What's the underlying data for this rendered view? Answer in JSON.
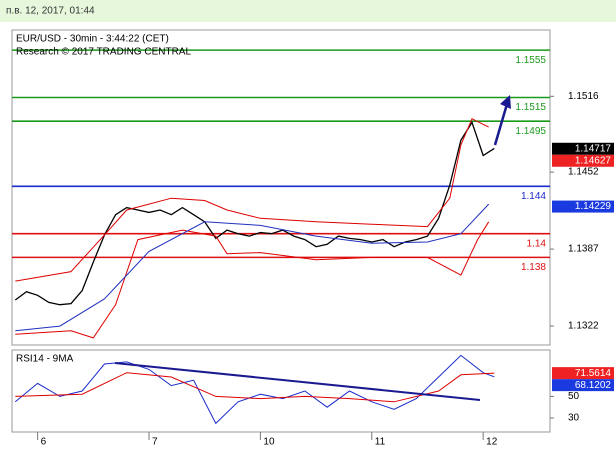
{
  "header": {
    "timestamp": "п.в. 12, 2017, 01:44"
  },
  "chart_data": [
    {
      "type": "line",
      "title": "EUR/USD - 30min - 3:44:22 (CET)",
      "subtitle": "Research © 2017 TRADING CENTRAL",
      "xlim": [
        -0.23,
        4.6
      ],
      "ylim": [
        1.1306,
        1.1572
      ],
      "yticks": [
        1.1322,
        1.1387,
        1.1452,
        1.1516
      ],
      "series": [
        {
          "color": "#000000",
          "x": [
            -0.2,
            -0.1,
            0,
            0.1,
            0.2,
            0.3,
            0.4,
            0.5,
            0.6,
            0.7,
            0.8,
            0.9,
            1,
            1.1,
            1.2,
            1.3,
            1.4,
            1.5,
            1.6,
            1.7,
            1.8,
            1.9,
            2,
            2.1,
            2.2,
            2.3,
            2.4,
            2.5,
            2.6,
            2.7,
            2.8,
            2.9,
            3,
            3.1,
            3.2,
            3.3,
            3.4,
            3.5,
            3.6,
            3.7,
            3.8,
            3.9,
            4,
            4.1
          ],
          "values": [
            1.1344,
            1.1351,
            1.1348,
            1.1342,
            1.134,
            1.1341,
            1.1352,
            1.1376,
            1.1399,
            1.1416,
            1.1422,
            1.142,
            1.1418,
            1.142,
            1.1416,
            1.1422,
            1.1416,
            1.141,
            1.1396,
            1.1403,
            1.14,
            1.1398,
            1.1401,
            1.14,
            1.1403,
            1.1398,
            1.1395,
            1.1389,
            1.1391,
            1.1398,
            1.1396,
            1.1395,
            1.1393,
            1.1395,
            1.1389,
            1.1393,
            1.1395,
            1.1398,
            1.1413,
            1.1441,
            1.1479,
            1.1494,
            1.1466,
            1.1472
          ]
        },
        {
          "color": "#e00000",
          "x": [
            -0.2,
            0.3,
            0.6,
            0.8,
            1.2,
            1.5,
            1.7,
            2,
            2.5,
            3,
            3.5,
            3.7,
            3.8,
            3.9,
            4.05
          ],
          "values": [
            1.136,
            1.1368,
            1.1399,
            1.142,
            1.143,
            1.1428,
            1.142,
            1.1413,
            1.141,
            1.1408,
            1.1406,
            1.143,
            1.1475,
            1.1497,
            1.149
          ]
        },
        {
          "color": "#e00000",
          "x": [
            -0.2,
            0.3,
            0.5,
            0.7,
            0.9,
            1.3,
            1.6,
            1.7,
            2,
            2.5,
            3,
            3.5,
            3.8,
            3.95,
            4.05
          ],
          "values": [
            1.1315,
            1.1318,
            1.1312,
            1.134,
            1.1395,
            1.1403,
            1.1398,
            1.1383,
            1.1384,
            1.1378,
            1.138,
            1.138,
            1.1365,
            1.1395,
            1.141
          ]
        },
        {
          "color": "#2030c0",
          "x": [
            -0.2,
            0.2,
            0.6,
            1,
            1.5,
            2,
            2.5,
            3,
            3.5,
            3.8,
            4.05
          ],
          "values": [
            1.1318,
            1.1322,
            1.1345,
            1.1385,
            1.141,
            1.1407,
            1.1398,
            1.1392,
            1.1393,
            1.14,
            1.1425
          ]
        }
      ],
      "levels": [
        {
          "value": 1.1555,
          "color": "#1a9a1a"
        },
        {
          "value": 1.1515,
          "color": "#1a9a1a"
        },
        {
          "value": 1.1495,
          "color": "#1a9a1a"
        },
        {
          "value": 1.144,
          "color": "#1a2ccc"
        },
        {
          "value": 1.14,
          "color": "#dd1111"
        },
        {
          "value": 1.138,
          "color": "#dd1111"
        }
      ],
      "price_tags": [
        {
          "value": 1.14717,
          "color": "#000000"
        },
        {
          "value": 1.14627,
          "color": "#ee2222"
        },
        {
          "value": 1.14229,
          "color": "#1a3ae0"
        }
      ]
    },
    {
      "type": "line",
      "title": "RSI14 - 9MA",
      "xlim": [
        -0.23,
        4.6
      ],
      "ylim": [
        17,
        93
      ],
      "yticks": [
        30,
        50
      ],
      "xticks": [
        {
          "value": 0,
          "label": "6"
        },
        {
          "value": 1,
          "label": "7"
        },
        {
          "value": 2,
          "label": "10"
        },
        {
          "value": 3,
          "label": "11"
        },
        {
          "value": 4,
          "label": "12"
        }
      ],
      "series": [
        {
          "color": "#1a2ccc",
          "x": [
            -0.2,
            0,
            0.2,
            0.4,
            0.6,
            0.8,
            1,
            1.2,
            1.4,
            1.6,
            1.8,
            2,
            2.2,
            2.4,
            2.6,
            2.8,
            3,
            3.2,
            3.4,
            3.6,
            3.8,
            4,
            4.1
          ],
          "values": [
            45,
            62,
            50,
            55,
            80,
            82,
            75,
            60,
            65,
            25,
            45,
            52,
            48,
            55,
            40,
            55,
            45,
            38,
            48,
            68,
            88,
            72,
            68.1202
          ]
        },
        {
          "color": "#e00000",
          "x": [
            -0.2,
            0.4,
            0.8,
            1.2,
            1.6,
            2,
            2.4,
            2.8,
            3.2,
            3.6,
            3.8,
            4.1
          ],
          "values": [
            50,
            52,
            72,
            68,
            50,
            48,
            50,
            48,
            45,
            55,
            70,
            71.5614
          ]
        }
      ],
      "price_tags": [
        {
          "value": 71.5614,
          "color": "#ee2222"
        },
        {
          "value": 68.1202,
          "color": "#1a3ae0"
        }
      ]
    }
  ]
}
